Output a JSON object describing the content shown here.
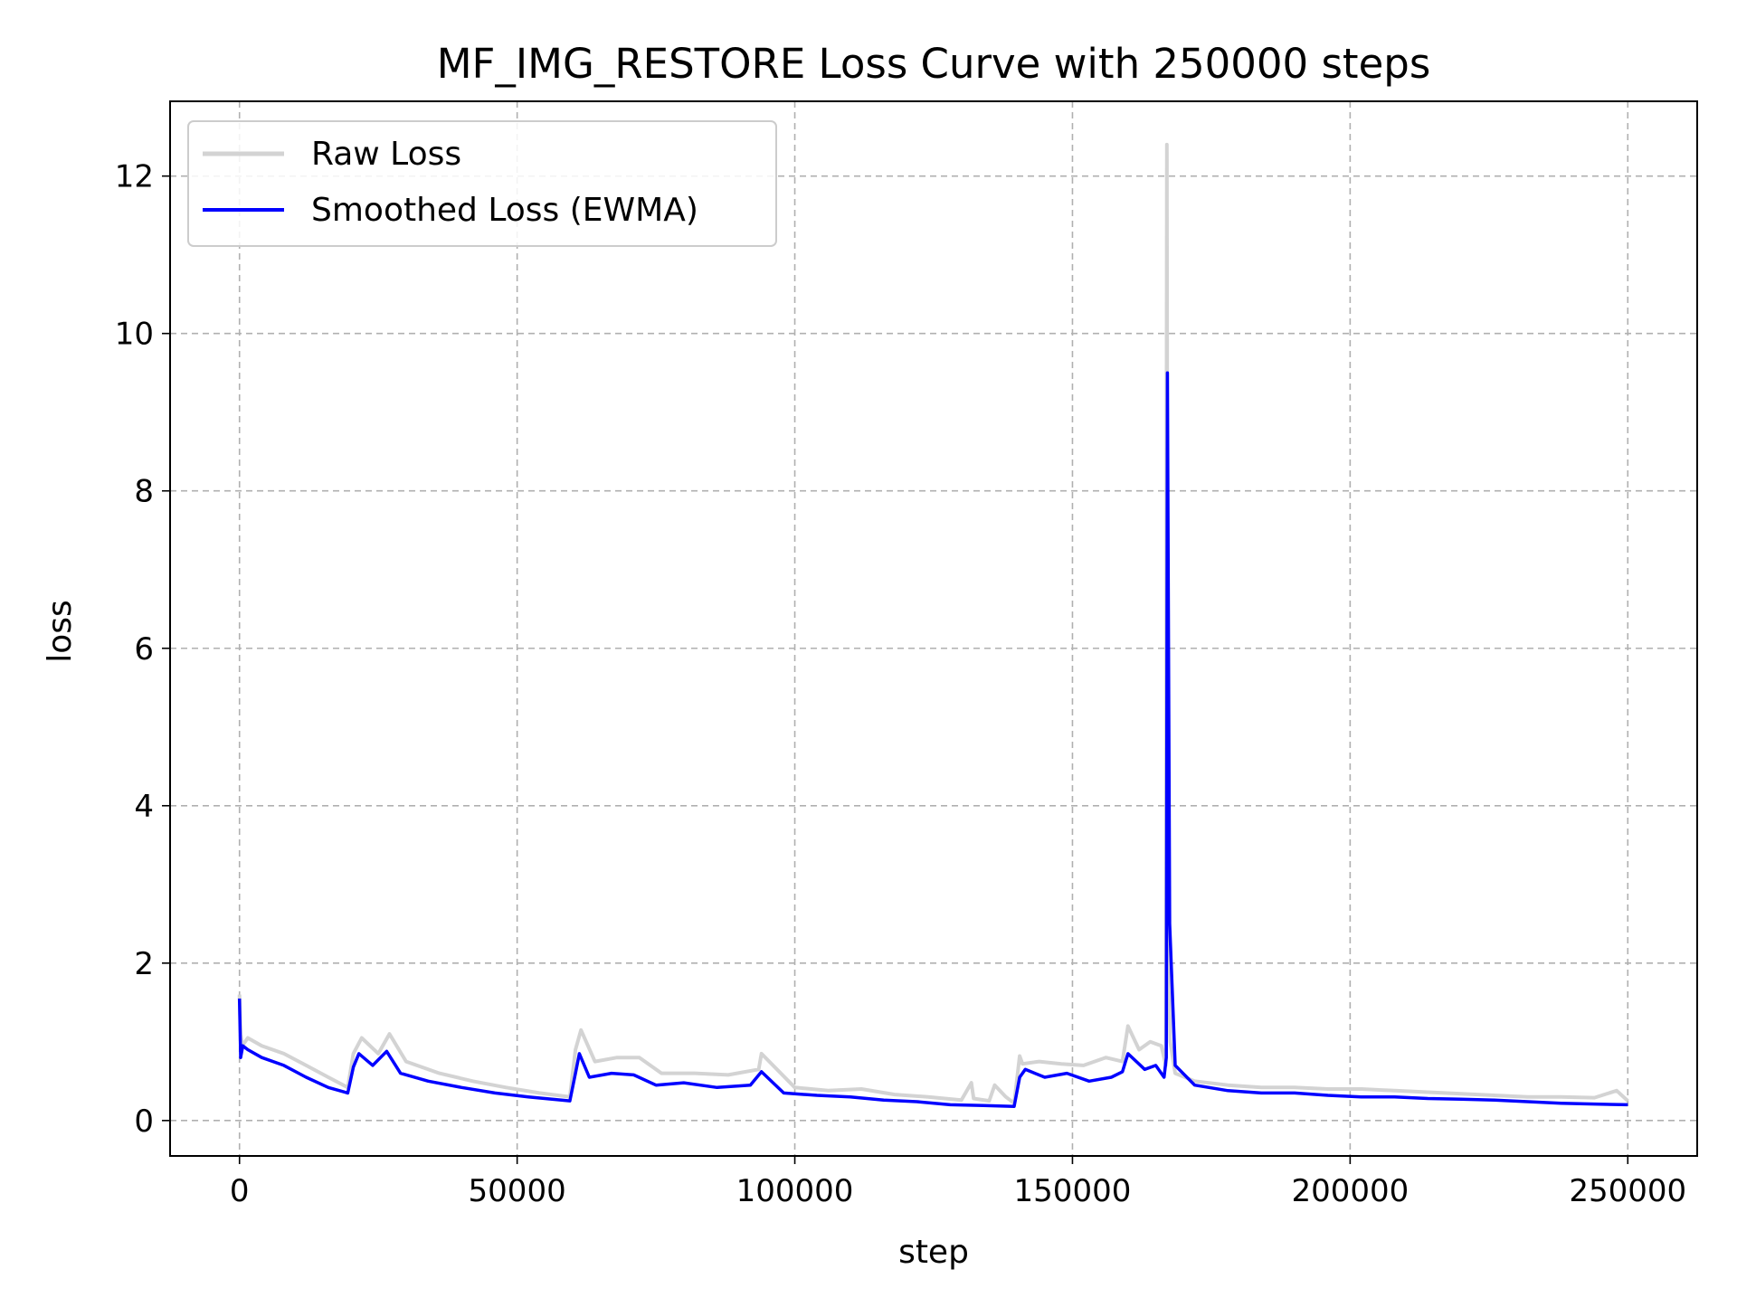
{
  "chart_data": {
    "type": "line",
    "title": "MF_IMG_RESTORE Loss Curve with 250000 steps",
    "xlabel": "step",
    "ylabel": "loss",
    "xlim": [
      -12500,
      262500
    ],
    "ylim": [
      -0.45,
      12.95
    ],
    "x_ticks": [
      0,
      50000,
      100000,
      150000,
      200000,
      250000
    ],
    "x_tick_labels": [
      "0",
      "50000",
      "100000",
      "150000",
      "200000",
      "250000"
    ],
    "y_ticks": [
      0,
      2,
      4,
      6,
      8,
      10,
      12
    ],
    "y_tick_labels": [
      "0",
      "2",
      "4",
      "6",
      "8",
      "10",
      "12"
    ],
    "grid": true,
    "legend_position": "top-left",
    "series": [
      {
        "name": "Raw Loss",
        "color": "#d3d3d3",
        "x": [
          0,
          200,
          500,
          1500,
          4000,
          8000,
          12000,
          16000,
          19500,
          20500,
          22000,
          25000,
          27000,
          30000,
          36000,
          42000,
          48000,
          54000,
          59500,
          60500,
          61500,
          64000,
          68000,
          72000,
          76000,
          82000,
          88000,
          93500,
          94000,
          100000,
          106000,
          112000,
          118000,
          124000,
          130000,
          131800,
          132200,
          135000,
          136000,
          138000,
          139500,
          140500,
          141000,
          144000,
          148000,
          152000,
          156000,
          159000,
          160000,
          162000,
          164000,
          166000,
          166800,
          167000,
          167200,
          167600,
          168500,
          172000,
          178000,
          184000,
          190000,
          196000,
          202000,
          208000,
          214000,
          220000,
          226000,
          232000,
          238000,
          244000,
          248000,
          250000
        ],
        "values": [
          1.6,
          1.1,
          0.95,
          1.05,
          0.95,
          0.85,
          0.7,
          0.55,
          0.42,
          0.85,
          1.05,
          0.85,
          1.1,
          0.75,
          0.6,
          0.5,
          0.42,
          0.35,
          0.3,
          0.9,
          1.15,
          0.75,
          0.8,
          0.8,
          0.6,
          0.6,
          0.58,
          0.65,
          0.85,
          0.42,
          0.38,
          0.4,
          0.33,
          0.3,
          0.26,
          0.48,
          0.28,
          0.25,
          0.45,
          0.3,
          0.22,
          0.82,
          0.72,
          0.75,
          0.72,
          0.7,
          0.8,
          0.75,
          1.2,
          0.9,
          1.0,
          0.95,
          0.7,
          12.4,
          2.5,
          1.0,
          0.6,
          0.5,
          0.45,
          0.42,
          0.42,
          0.4,
          0.4,
          0.38,
          0.36,
          0.34,
          0.32,
          0.3,
          0.3,
          0.29,
          0.38,
          0.25
        ]
      },
      {
        "name": "Smoothed Loss (EWMA)",
        "color": "#0000ff",
        "x": [
          0,
          200,
          600,
          1500,
          4000,
          8000,
          12000,
          16000,
          19500,
          20500,
          21500,
          24000,
          26500,
          29000,
          34000,
          40000,
          46000,
          52000,
          59500,
          60500,
          61200,
          63000,
          67000,
          71000,
          75000,
          80000,
          86000,
          92000,
          94000,
          98000,
          104000,
          110000,
          116000,
          122000,
          128000,
          134000,
          139500,
          140500,
          141500,
          145000,
          149000,
          153000,
          157000,
          159000,
          160000,
          163000,
          165000,
          166500,
          166900,
          167100,
          167500,
          168500,
          172000,
          178000,
          184000,
          190000,
          196000,
          202000,
          208000,
          214000,
          220000,
          226000,
          232000,
          238000,
          244000,
          250000
        ],
        "values": [
          1.55,
          0.8,
          0.95,
          0.9,
          0.8,
          0.7,
          0.55,
          0.42,
          0.35,
          0.68,
          0.85,
          0.7,
          0.88,
          0.6,
          0.5,
          0.42,
          0.35,
          0.3,
          0.25,
          0.6,
          0.85,
          0.55,
          0.6,
          0.58,
          0.45,
          0.48,
          0.42,
          0.45,
          0.62,
          0.35,
          0.32,
          0.3,
          0.26,
          0.24,
          0.2,
          0.19,
          0.18,
          0.55,
          0.65,
          0.55,
          0.6,
          0.5,
          0.55,
          0.62,
          0.85,
          0.65,
          0.7,
          0.55,
          0.8,
          9.5,
          2.5,
          0.7,
          0.45,
          0.38,
          0.35,
          0.35,
          0.32,
          0.3,
          0.3,
          0.28,
          0.27,
          0.26,
          0.24,
          0.22,
          0.21,
          0.2
        ]
      }
    ]
  }
}
